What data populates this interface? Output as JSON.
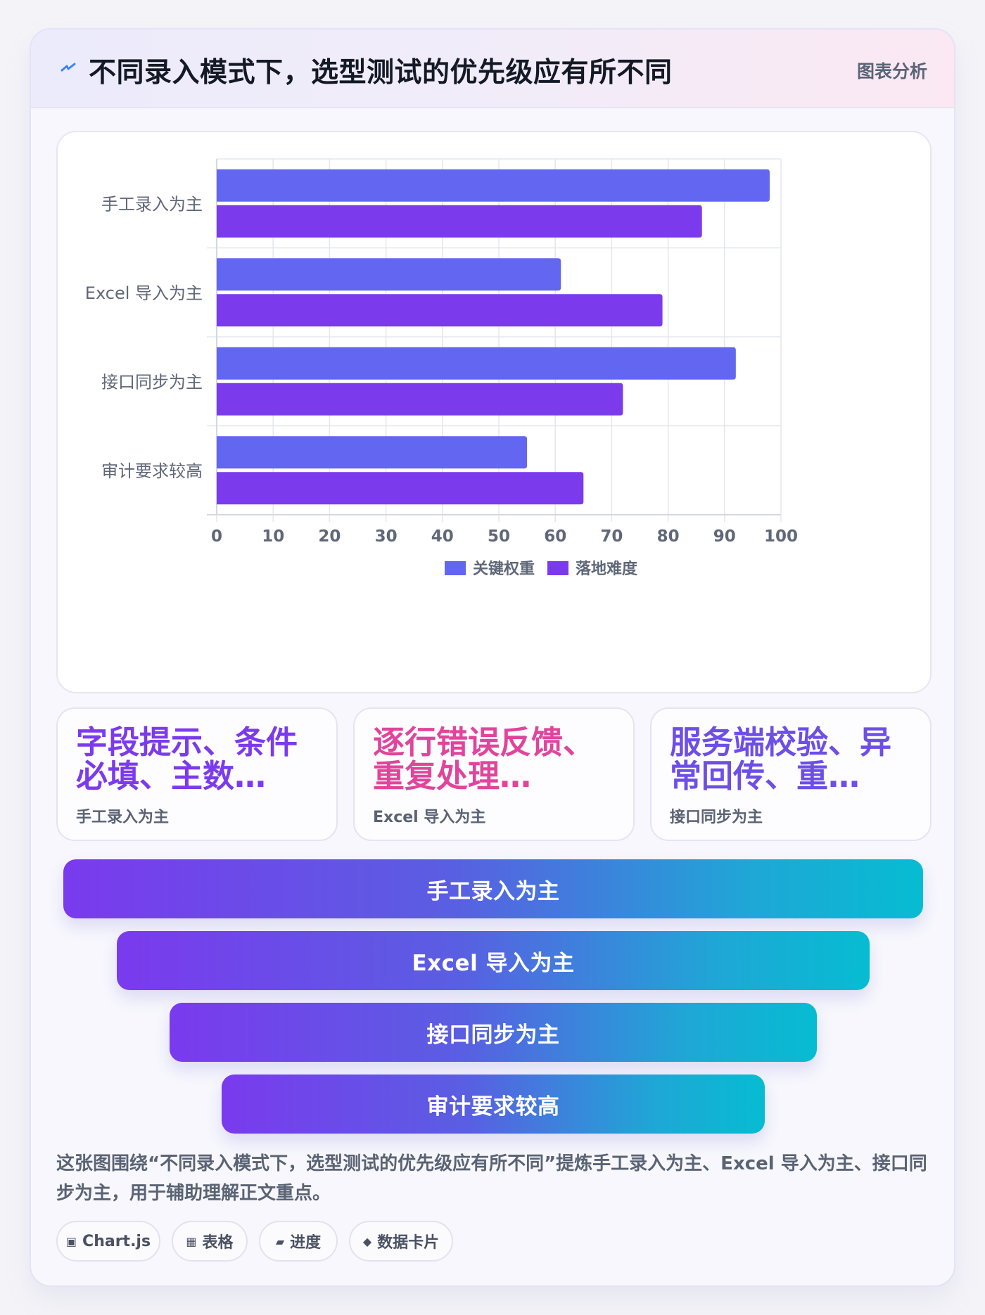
{
  "header": {
    "title": "不同录入模式下，选型测试的优先级应有所不同",
    "tag": "图表分析",
    "icon": "lightning-icon"
  },
  "chart_data": {
    "type": "bar",
    "orientation": "horizontal",
    "categories": [
      "手工录入为主",
      "Excel 导入为主",
      "接口同步为主",
      "审计要求较高"
    ],
    "series": [
      {
        "name": "关键权重",
        "values": [
          98,
          61,
          92,
          55
        ],
        "color": "#6366f1"
      },
      {
        "name": "落地难度",
        "values": [
          86,
          79,
          72,
          65
        ],
        "color": "#7c3aed"
      }
    ],
    "xlim": [
      0,
      100
    ],
    "xticks": [
      "0",
      "10",
      "20",
      "30",
      "40",
      "50",
      "60",
      "70",
      "80",
      "90",
      "100"
    ],
    "grid": true,
    "legend": "bottom"
  },
  "stat_cards": [
    {
      "value": "字段提示、条件必填、主数…",
      "label": "手工录入为主",
      "color": "#7c3aed"
    },
    {
      "value": "逐行错误反馈、重复处理…",
      "label": "Excel 导入为主",
      "color": "#e0459b"
    },
    {
      "value": "服务端校验、异常回传、重…",
      "label": "接口同步为主",
      "color": "#6d4ee8"
    }
  ],
  "funnel": [
    {
      "label": "手工录入为主"
    },
    {
      "label": "Excel 导入为主"
    },
    {
      "label": "接口同步为主"
    },
    {
      "label": "审计要求较高"
    }
  ],
  "description": "这张图围绕“不同录入模式下，选型测试的优先级应有所不同”提炼手工录入为主、Excel 导入为主、接口同步为主，用于辅助理解正文重点。",
  "chips": [
    {
      "icon": "▣",
      "label": "Chart.js"
    },
    {
      "icon": "▦",
      "label": "表格"
    },
    {
      "icon": "▰",
      "label": "进度"
    },
    {
      "icon": "◆",
      "label": "数据卡片"
    }
  ]
}
